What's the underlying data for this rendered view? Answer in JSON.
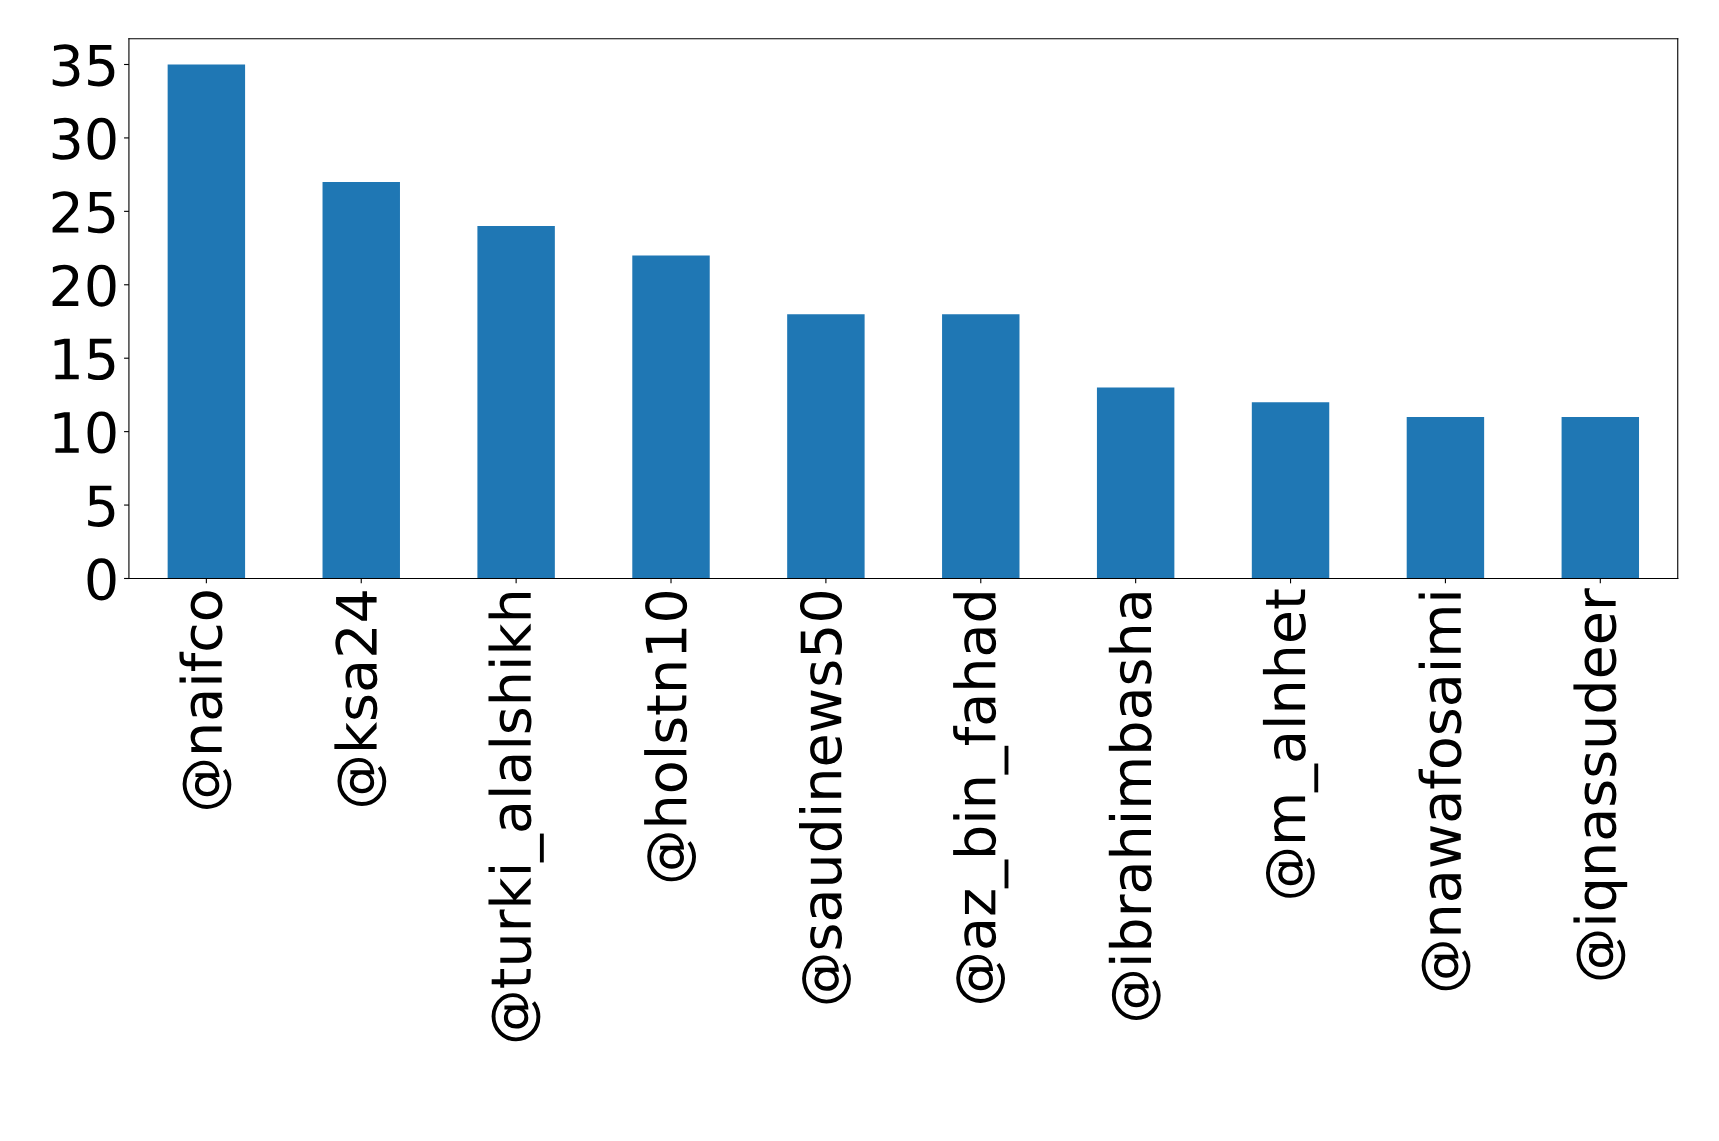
{
  "chart_data": {
    "type": "bar",
    "categories": [
      "@naifco",
      "@ksa24",
      "@turki_alalshikh",
      "@holstn10",
      "@saudinews50",
      "@az_bin_fahad",
      "@ibrahimbasha",
      "@m_alnhet",
      "@nawafosaimi",
      "@iqnassudeer"
    ],
    "values": [
      35,
      27,
      24,
      22,
      18,
      18,
      13,
      12,
      11,
      11
    ],
    "color": "#1f77b4",
    "ylim": [
      0,
      36.75
    ],
    "yticks": [
      0,
      5,
      10,
      15,
      20,
      25,
      30,
      35
    ],
    "grid": false,
    "legend": false
  }
}
